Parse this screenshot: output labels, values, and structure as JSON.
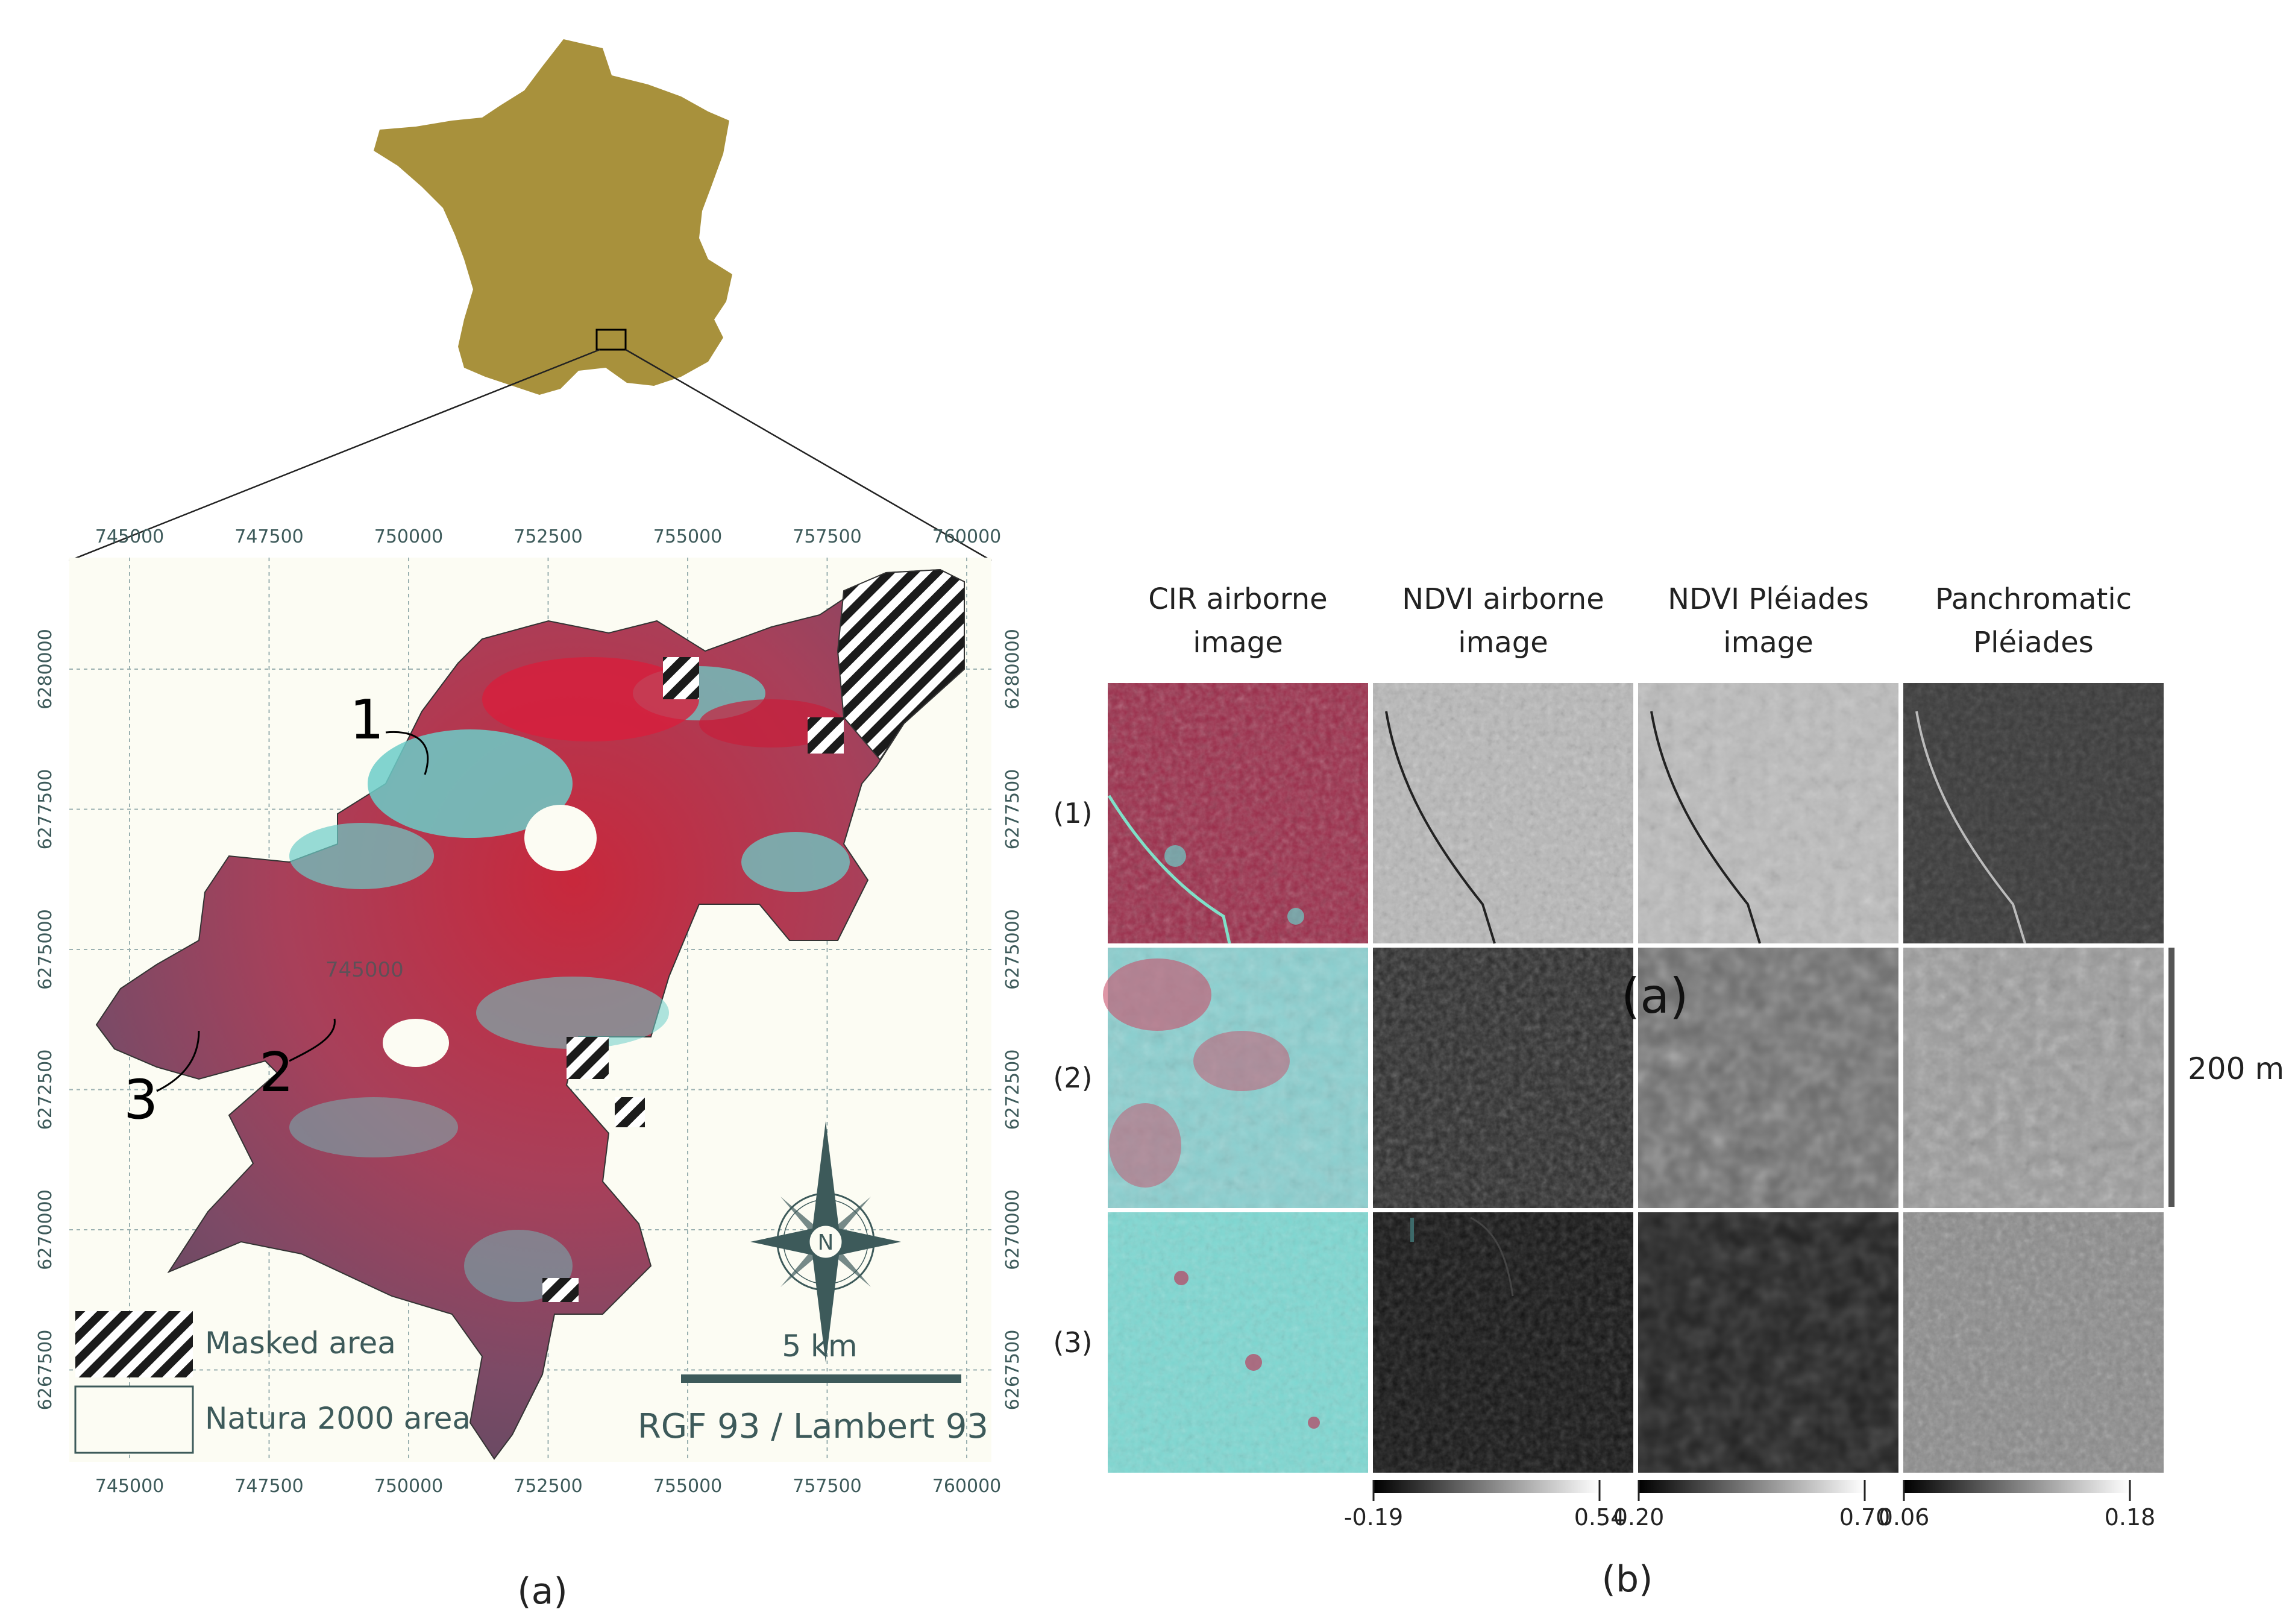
{
  "panel_a": {
    "label": "(a)",
    "x_ticks": [
      "745000",
      "747500",
      "750000",
      "752500",
      "755000",
      "757500",
      "760000"
    ],
    "y_ticks": [
      "6280000",
      "6277500",
      "6275000",
      "6272500",
      "6270000",
      "6267500"
    ],
    "inner_coord_label": "745000",
    "site_labels": [
      "1",
      "2",
      "3"
    ],
    "legend": {
      "masked_label": "Masked area",
      "natura_label": "Natura 2000 area"
    },
    "scale_bar_label": "5 km",
    "crs_label": "RGF 93 / Lambert 93",
    "compass_label": "N",
    "colors": {
      "france": "#a8913c",
      "map_background": "#fcfcf3",
      "cir_red": "#c8283c",
      "cir_cyan": "#6ccdc8",
      "cir_purple": "#7c4a66",
      "annotation": "#3d5a5a"
    }
  },
  "panel_b": {
    "label": "(b)",
    "column_headers": [
      [
        "CIR airborne",
        "image"
      ],
      [
        "NDVI airborne",
        "image"
      ],
      [
        "NDVI Pléiades",
        "image"
      ],
      [
        "Panchromatic",
        "Pléiades"
      ]
    ],
    "row_labels": [
      "(1)",
      "(2)",
      "(3)"
    ],
    "stray_label": "(a)",
    "scale_label": "200 m",
    "colorbars": [
      {
        "min": "-0.19",
        "max": "0.54"
      },
      {
        "min": "0.20",
        "max": "0.70"
      },
      {
        "min": "0.06",
        "max": "0.18"
      }
    ]
  }
}
